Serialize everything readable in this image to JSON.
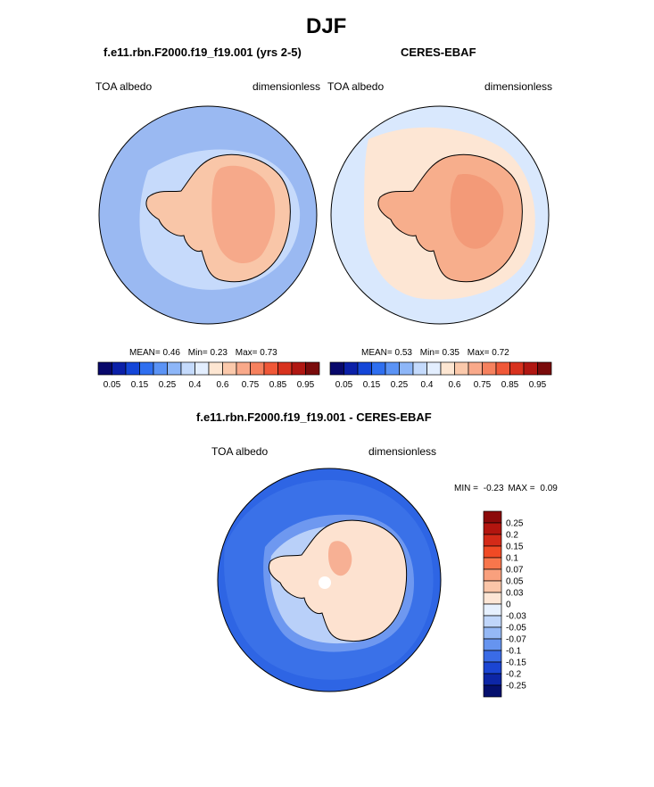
{
  "page_title": "DJF",
  "panels": [
    {
      "title": "f.e11.rbn.F2000.f19_f19.001 (yrs 2-5)",
      "left_label": "TOA albedo",
      "right_label": "dimensionless",
      "stats": {
        "mean_label": "MEAN=",
        "mean": "0.46",
        "min_label": "Min=",
        "min": "0.23",
        "max_label": "Max=",
        "max": "0.73"
      }
    },
    {
      "title": "CERES-EBAF",
      "left_label": "TOA albedo",
      "right_label": "dimensionless",
      "stats": {
        "mean_label": "MEAN=",
        "mean": "0.53",
        "min_label": "Min=",
        "min": "0.35",
        "max_label": "Max=",
        "max": "0.72"
      }
    },
    {
      "title": "f.e11.rbn.F2000.f19_f19.001 - CERES-EBAF",
      "left_label": "TOA albedo",
      "right_label": "dimensionless",
      "stats": {
        "min_label": "MIN =",
        "min": "-0.23",
        "max_label": "MAX =",
        "max": "0.09"
      }
    }
  ],
  "chart_data": [
    {
      "type": "heatmap",
      "projection": "south-polar-stereographic",
      "title": "f.e11.rbn.F2000.f19_f19.001 (yrs 2-5)",
      "variable": "TOA albedo",
      "units": "dimensionless",
      "mean": 0.46,
      "min": 0.23,
      "max": 0.73,
      "colorbar": {
        "orientation": "horizontal",
        "tick_labels": [
          "0.05",
          "0.15",
          "0.25",
          "0.4",
          "0.6",
          "0.75",
          "0.85",
          "0.95"
        ],
        "colors": [
          "#08086b",
          "#0b20a8",
          "#1446d8",
          "#2f6ff0",
          "#5b93f5",
          "#8db6f8",
          "#c4dafc",
          "#e3eefe",
          "#fde6d2",
          "#fbc9ab",
          "#f9a98a",
          "#f6815e",
          "#f05838",
          "#d8321e",
          "#b01712",
          "#7a0b0b"
        ]
      }
    },
    {
      "type": "heatmap",
      "projection": "south-polar-stereographic",
      "title": "CERES-EBAF",
      "variable": "TOA albedo",
      "units": "dimensionless",
      "mean": 0.53,
      "min": 0.35,
      "max": 0.72,
      "colorbar": {
        "orientation": "horizontal",
        "tick_labels": [
          "0.05",
          "0.15",
          "0.25",
          "0.4",
          "0.6",
          "0.75",
          "0.85",
          "0.95"
        ],
        "colors": [
          "#08086b",
          "#0b20a8",
          "#1446d8",
          "#2f6ff0",
          "#5b93f5",
          "#8db6f8",
          "#c4dafc",
          "#e3eefe",
          "#fde6d2",
          "#fbc9ab",
          "#f9a98a",
          "#f6815e",
          "#f05838",
          "#d8321e",
          "#b01712",
          "#7a0b0b"
        ]
      }
    },
    {
      "type": "heatmap",
      "projection": "south-polar-stereographic",
      "title": "f.e11.rbn.F2000.f19_f19.001 - CERES-EBAF",
      "variable": "TOA albedo",
      "units": "dimensionless",
      "min": -0.23,
      "max": 0.09,
      "colorbar": {
        "orientation": "vertical",
        "tick_labels": [
          "0.25",
          "0.2",
          "0.15",
          "0.1",
          "0.07",
          "0.05",
          "0.03",
          "0",
          "-0.03",
          "-0.05",
          "-0.07",
          "-0.1",
          "-0.15",
          "-0.2",
          "-0.25"
        ],
        "colors": [
          "#8c0a0a",
          "#b3150f",
          "#d42a18",
          "#f04a25",
          "#f8764c",
          "#f9a07d",
          "#fbc5a8",
          "#fde6d6",
          "#e6f0fe",
          "#c0d6fa",
          "#95b8f5",
          "#6694ef",
          "#3a6be6",
          "#1b45d3",
          "#0d26a6",
          "#05106e"
        ]
      }
    }
  ],
  "map_colors": {
    "ocean_m1": "#9ab9f2",
    "ocean_m1_light": "#c6dafb",
    "land_m1": "#f9c6a8",
    "land_m1_core": "#f6a98a",
    "ocean_m2": "#d9e8fd",
    "ocean_m2_ice": "#fde6d4",
    "land_m2": "#f7ae8c",
    "land_m2_dark": "#f39a78",
    "diff_ocean": "#2e65e4",
    "diff_ocean_mid": "#3a71e8",
    "diff_ring": "#6e98f0",
    "diff_coast": "#b9d0f9",
    "diff_land": "#fde2d0",
    "diff_land_hot": "#f7b094"
  }
}
